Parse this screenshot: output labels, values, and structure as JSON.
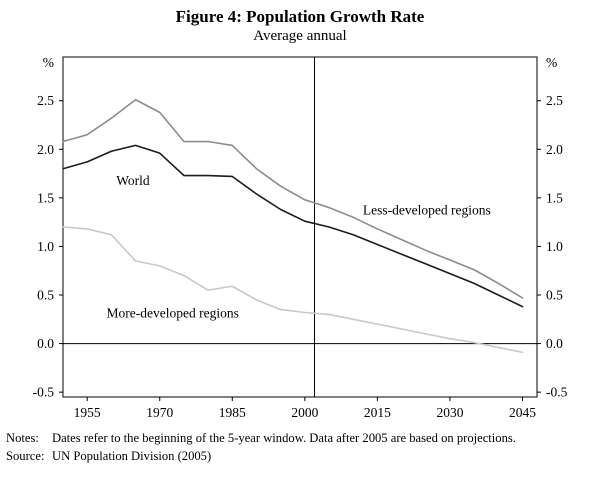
{
  "figure": {
    "title": "Figure 4: Population Growth Rate",
    "subtitle": "Average annual"
  },
  "notes": {
    "label": "Notes:",
    "text": "Dates refer to the beginning of the 5-year window. Data after 2005 are based on projections."
  },
  "source": {
    "label": "Source:",
    "text": "UN Population Division (2005)"
  },
  "chart_data": {
    "type": "line",
    "title": "Figure 4: Population Growth Rate",
    "subtitle": "Average annual",
    "y_unit": "%",
    "xlim": [
      1950,
      2048
    ],
    "ylim": [
      -0.55,
      2.95
    ],
    "yticks": [
      -0.5,
      0.0,
      0.5,
      1.0,
      1.5,
      2.0,
      2.5
    ],
    "xticks": [
      1955,
      1970,
      1985,
      2000,
      2015,
      2030,
      2045
    ],
    "grid": false,
    "zero_line": true,
    "vline_x": 2002,
    "x": [
      1950,
      1955,
      1960,
      1965,
      1970,
      1975,
      1980,
      1985,
      1990,
      1995,
      2000,
      2005,
      2010,
      2015,
      2020,
      2025,
      2030,
      2035,
      2040,
      2045
    ],
    "series": [
      {
        "name": "World",
        "color": "#1c1c1c",
        "values": [
          1.8,
          1.87,
          1.98,
          2.04,
          1.96,
          1.73,
          1.73,
          1.72,
          1.54,
          1.38,
          1.26,
          1.2,
          1.12,
          1.02,
          0.92,
          0.82,
          0.72,
          0.62,
          0.5,
          0.38
        ]
      },
      {
        "name": "Less-developed regions",
        "color": "#8c8c8c",
        "values": [
          2.08,
          2.15,
          2.32,
          2.51,
          2.38,
          2.08,
          2.08,
          2.04,
          1.8,
          1.62,
          1.48,
          1.4,
          1.3,
          1.18,
          1.07,
          0.96,
          0.86,
          0.76,
          0.62,
          0.47
        ]
      },
      {
        "name": "More-developed regions",
        "color": "#c8c8c8",
        "values": [
          1.2,
          1.18,
          1.12,
          0.85,
          0.8,
          0.7,
          0.55,
          0.59,
          0.45,
          0.35,
          0.32,
          0.3,
          0.25,
          0.2,
          0.15,
          0.1,
          0.05,
          0.01,
          -0.04,
          -0.09
        ]
      }
    ],
    "annotations": [
      {
        "text": "World",
        "x": 1961,
        "y": 1.63
      },
      {
        "text": "Less-developed regions",
        "x": 2012,
        "y": 1.33
      },
      {
        "text": "More-developed regions",
        "x": 1959,
        "y": 0.27
      }
    ]
  }
}
